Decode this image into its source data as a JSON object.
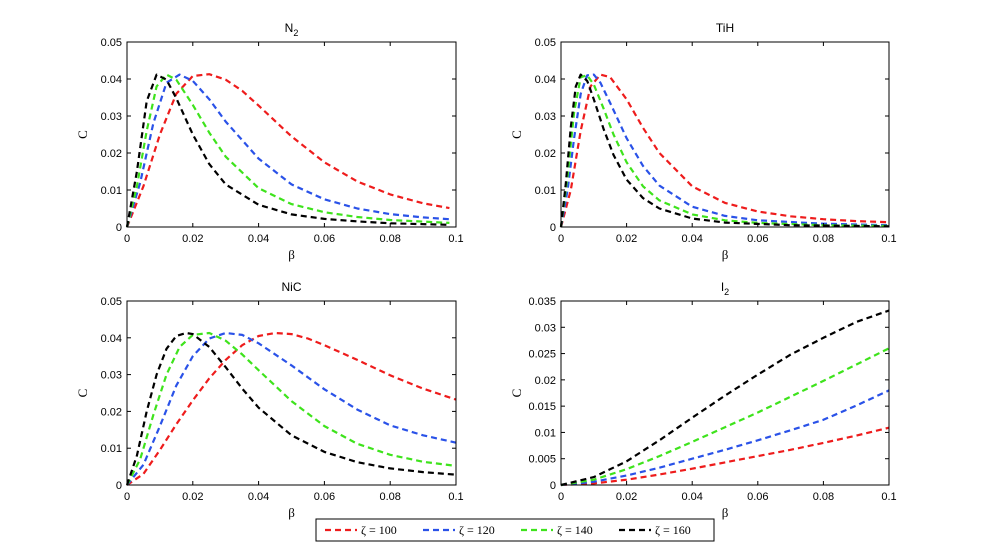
{
  "legend": {
    "items": [
      {
        "label": "ζ = 100",
        "color": "#ee1c1c"
      },
      {
        "label": "ζ = 120",
        "color": "#2a52e8"
      },
      {
        "label": "ζ = 140",
        "color": "#3ee31c"
      },
      {
        "label": "ζ = 160",
        "color": "#000000"
      }
    ]
  },
  "chart_data": [
    {
      "type": "line",
      "title": "N",
      "title_subscript": "2",
      "xlabel": "β",
      "ylabel": "C",
      "xlim": [
        0,
        0.1
      ],
      "ylim": [
        0,
        0.05
      ],
      "xticks": [
        "0",
        "0.02",
        "0.04",
        "0.06",
        "0.08",
        "0.1"
      ],
      "yticks": [
        "0",
        "0.01",
        "0.02",
        "0.03",
        "0.04",
        "0.05"
      ],
      "series": [
        {
          "name": "ζ = 100",
          "color": "#ee1c1c",
          "x": [
            0,
            0.005,
            0.01,
            0.015,
            0.02,
            0.025,
            0.03,
            0.035,
            0.04,
            0.05,
            0.06,
            0.07,
            0.08,
            0.09,
            0.098
          ],
          "y": [
            0,
            0.011,
            0.025,
            0.036,
            0.0408,
            0.0413,
            0.0398,
            0.0368,
            0.0328,
            0.0245,
            0.0175,
            0.0123,
            0.0088,
            0.0064,
            0.0051
          ]
        },
        {
          "name": "ζ = 120",
          "color": "#2a52e8",
          "x": [
            0,
            0.004,
            0.008,
            0.012,
            0.016,
            0.02,
            0.025,
            0.03,
            0.04,
            0.05,
            0.06,
            0.07,
            0.08,
            0.09,
            0.098
          ],
          "y": [
            0,
            0.012,
            0.028,
            0.039,
            0.0412,
            0.0395,
            0.0345,
            0.0285,
            0.0185,
            0.0115,
            0.0075,
            0.005,
            0.0035,
            0.0026,
            0.0021
          ]
        },
        {
          "name": "ζ = 140",
          "color": "#3ee31c",
          "x": [
            0,
            0.003,
            0.006,
            0.009,
            0.012,
            0.015,
            0.02,
            0.025,
            0.03,
            0.04,
            0.05,
            0.06,
            0.07,
            0.08,
            0.098
          ],
          "y": [
            0,
            0.011,
            0.026,
            0.038,
            0.0412,
            0.0398,
            0.033,
            0.0255,
            0.019,
            0.0105,
            0.0062,
            0.004,
            0.0027,
            0.0019,
            0.0011
          ]
        },
        {
          "name": "ζ = 160",
          "color": "#000000",
          "x": [
            0,
            0.003,
            0.006,
            0.009,
            0.012,
            0.015,
            0.02,
            0.025,
            0.03,
            0.04,
            0.05,
            0.06,
            0.07,
            0.08,
            0.098
          ],
          "y": [
            0,
            0.015,
            0.034,
            0.0412,
            0.0398,
            0.0348,
            0.025,
            0.017,
            0.0115,
            0.006,
            0.0034,
            0.0022,
            0.0015,
            0.001,
            0.0006
          ]
        }
      ]
    },
    {
      "type": "line",
      "title": "TiH",
      "title_subscript": "",
      "xlabel": "β",
      "ylabel": "C",
      "xlim": [
        0,
        0.1
      ],
      "ylim": [
        0,
        0.05
      ],
      "xticks": [
        "0",
        "0.02",
        "0.04",
        "0.06",
        "0.08",
        "0.1"
      ],
      "yticks": [
        "0",
        "0.01",
        "0.02",
        "0.03",
        "0.04",
        "0.05"
      ],
      "series": [
        {
          "name": "ζ = 100",
          "color": "#ee1c1c",
          "x": [
            0,
            0.003,
            0.006,
            0.009,
            0.012,
            0.015,
            0.02,
            0.025,
            0.03,
            0.04,
            0.05,
            0.06,
            0.07,
            0.08,
            0.09,
            0.1
          ],
          "y": [
            0,
            0.01,
            0.026,
            0.038,
            0.0412,
            0.0405,
            0.0345,
            0.0268,
            0.02,
            0.011,
            0.0065,
            0.0042,
            0.0029,
            0.0021,
            0.0016,
            0.0013
          ]
        },
        {
          "name": "ζ = 120",
          "color": "#2a52e8",
          "x": [
            0,
            0.002,
            0.004,
            0.006,
            0.008,
            0.01,
            0.012,
            0.015,
            0.02,
            0.025,
            0.03,
            0.04,
            0.05,
            0.06,
            0.08,
            0.1
          ],
          "y": [
            0,
            0.01,
            0.024,
            0.036,
            0.041,
            0.0412,
            0.039,
            0.0335,
            0.024,
            0.0165,
            0.0112,
            0.0055,
            0.003,
            0.0018,
            0.0009,
            0.0005
          ]
        },
        {
          "name": "ζ = 140",
          "color": "#3ee31c",
          "x": [
            0,
            0.002,
            0.004,
            0.006,
            0.008,
            0.01,
            0.013,
            0.016,
            0.02,
            0.025,
            0.03,
            0.04,
            0.05,
            0.06,
            0.08,
            0.1
          ],
          "y": [
            0,
            0.014,
            0.031,
            0.0405,
            0.041,
            0.0385,
            0.032,
            0.025,
            0.0175,
            0.011,
            0.0072,
            0.0034,
            0.0018,
            0.0011,
            0.0005,
            0.0003
          ]
        },
        {
          "name": "ζ = 160",
          "color": "#000000",
          "x": [
            0,
            0.0015,
            0.003,
            0.0045,
            0.006,
            0.008,
            0.01,
            0.013,
            0.016,
            0.02,
            0.025,
            0.03,
            0.04,
            0.05,
            0.07,
            0.1
          ],
          "y": [
            0,
            0.012,
            0.027,
            0.038,
            0.0412,
            0.0395,
            0.0345,
            0.0265,
            0.0195,
            0.0128,
            0.0078,
            0.005,
            0.0023,
            0.0012,
            0.0005,
            0.0002
          ]
        }
      ]
    },
    {
      "type": "line",
      "title": "NiC",
      "title_subscript": "",
      "xlabel": "β",
      "ylabel": "C",
      "xlim": [
        0,
        0.1
      ],
      "ylim": [
        0,
        0.05
      ],
      "xticks": [
        "0",
        "0.02",
        "0.04",
        "0.06",
        "0.08",
        "0.1"
      ],
      "yticks": [
        "0",
        "0.01",
        "0.02",
        "0.03",
        "0.04",
        "0.05"
      ],
      "series": [
        {
          "name": "ζ = 100",
          "color": "#ee1c1c",
          "x": [
            0,
            0.005,
            0.01,
            0.015,
            0.02,
            0.025,
            0.03,
            0.035,
            0.04,
            0.045,
            0.05,
            0.055,
            0.06,
            0.07,
            0.08,
            0.09,
            0.1
          ],
          "y": [
            0,
            0.003,
            0.0095,
            0.0165,
            0.023,
            0.029,
            0.034,
            0.038,
            0.0405,
            0.0413,
            0.041,
            0.0398,
            0.038,
            0.034,
            0.0298,
            0.0262,
            0.0232
          ]
        },
        {
          "name": "ζ = 120",
          "color": "#2a52e8",
          "x": [
            0,
            0.005,
            0.01,
            0.015,
            0.02,
            0.025,
            0.03,
            0.035,
            0.04,
            0.05,
            0.06,
            0.07,
            0.08,
            0.09,
            0.1
          ],
          "y": [
            0,
            0.0055,
            0.016,
            0.027,
            0.035,
            0.0398,
            0.0413,
            0.0408,
            0.0385,
            0.0325,
            0.026,
            0.0205,
            0.0162,
            0.0135,
            0.0115
          ]
        },
        {
          "name": "ζ = 140",
          "color": "#3ee31c",
          "x": [
            0,
            0.004,
            0.008,
            0.012,
            0.016,
            0.02,
            0.025,
            0.03,
            0.035,
            0.04,
            0.05,
            0.06,
            0.07,
            0.08,
            0.09,
            0.1
          ],
          "y": [
            0,
            0.007,
            0.019,
            0.03,
            0.0375,
            0.0408,
            0.0413,
            0.0392,
            0.0355,
            0.0312,
            0.0228,
            0.016,
            0.0112,
            0.0082,
            0.0063,
            0.0052
          ]
        },
        {
          "name": "ζ = 160",
          "color": "#000000",
          "x": [
            0,
            0.003,
            0.006,
            0.009,
            0.012,
            0.015,
            0.018,
            0.02,
            0.025,
            0.03,
            0.035,
            0.04,
            0.05,
            0.06,
            0.07,
            0.08,
            0.09,
            0.1
          ],
          "y": [
            0,
            0.008,
            0.02,
            0.03,
            0.037,
            0.0405,
            0.0413,
            0.041,
            0.0375,
            0.032,
            0.0262,
            0.021,
            0.0135,
            0.009,
            0.0062,
            0.0045,
            0.0035,
            0.0028
          ]
        }
      ]
    },
    {
      "type": "line",
      "title": "I",
      "title_subscript": "2",
      "xlabel": "β",
      "ylabel": "C",
      "xlim": [
        0,
        0.1
      ],
      "ylim": [
        0,
        0.035
      ],
      "xticks": [
        "0",
        "0.02",
        "0.04",
        "0.06",
        "0.08",
        "0.1"
      ],
      "yticks": [
        "0",
        "0.005",
        "0.01",
        "0.015",
        "0.02",
        "0.025",
        "0.03",
        "0.035"
      ],
      "series": [
        {
          "name": "ζ = 100",
          "color": "#ee1c1c",
          "x": [
            0,
            0.01,
            0.02,
            0.03,
            0.04,
            0.05,
            0.06,
            0.07,
            0.08,
            0.09,
            0.1
          ],
          "y": [
            0,
            0.0003,
            0.001,
            0.002,
            0.0031,
            0.0043,
            0.0055,
            0.0067,
            0.008,
            0.0094,
            0.0109
          ]
        },
        {
          "name": "ζ = 120",
          "color": "#2a52e8",
          "x": [
            0,
            0.01,
            0.02,
            0.03,
            0.04,
            0.05,
            0.06,
            0.07,
            0.08,
            0.09,
            0.1
          ],
          "y": [
            0,
            0.0006,
            0.0018,
            0.0033,
            0.005,
            0.0067,
            0.0085,
            0.0104,
            0.0124,
            0.0151,
            0.018
          ]
        },
        {
          "name": "ζ = 140",
          "color": "#3ee31c",
          "x": [
            0,
            0.01,
            0.02,
            0.03,
            0.04,
            0.05,
            0.06,
            0.07,
            0.08,
            0.09,
            0.1
          ],
          "y": [
            0,
            0.001,
            0.003,
            0.0055,
            0.0082,
            0.011,
            0.0138,
            0.0168,
            0.0198,
            0.0229,
            0.026
          ]
        },
        {
          "name": "ζ = 160",
          "color": "#000000",
          "x": [
            0,
            0.01,
            0.02,
            0.03,
            0.04,
            0.05,
            0.06,
            0.07,
            0.08,
            0.09,
            0.1
          ],
          "y": [
            0,
            0.0015,
            0.0045,
            0.0085,
            0.0128,
            0.017,
            0.021,
            0.0248,
            0.028,
            0.031,
            0.0332
          ]
        }
      ]
    }
  ]
}
